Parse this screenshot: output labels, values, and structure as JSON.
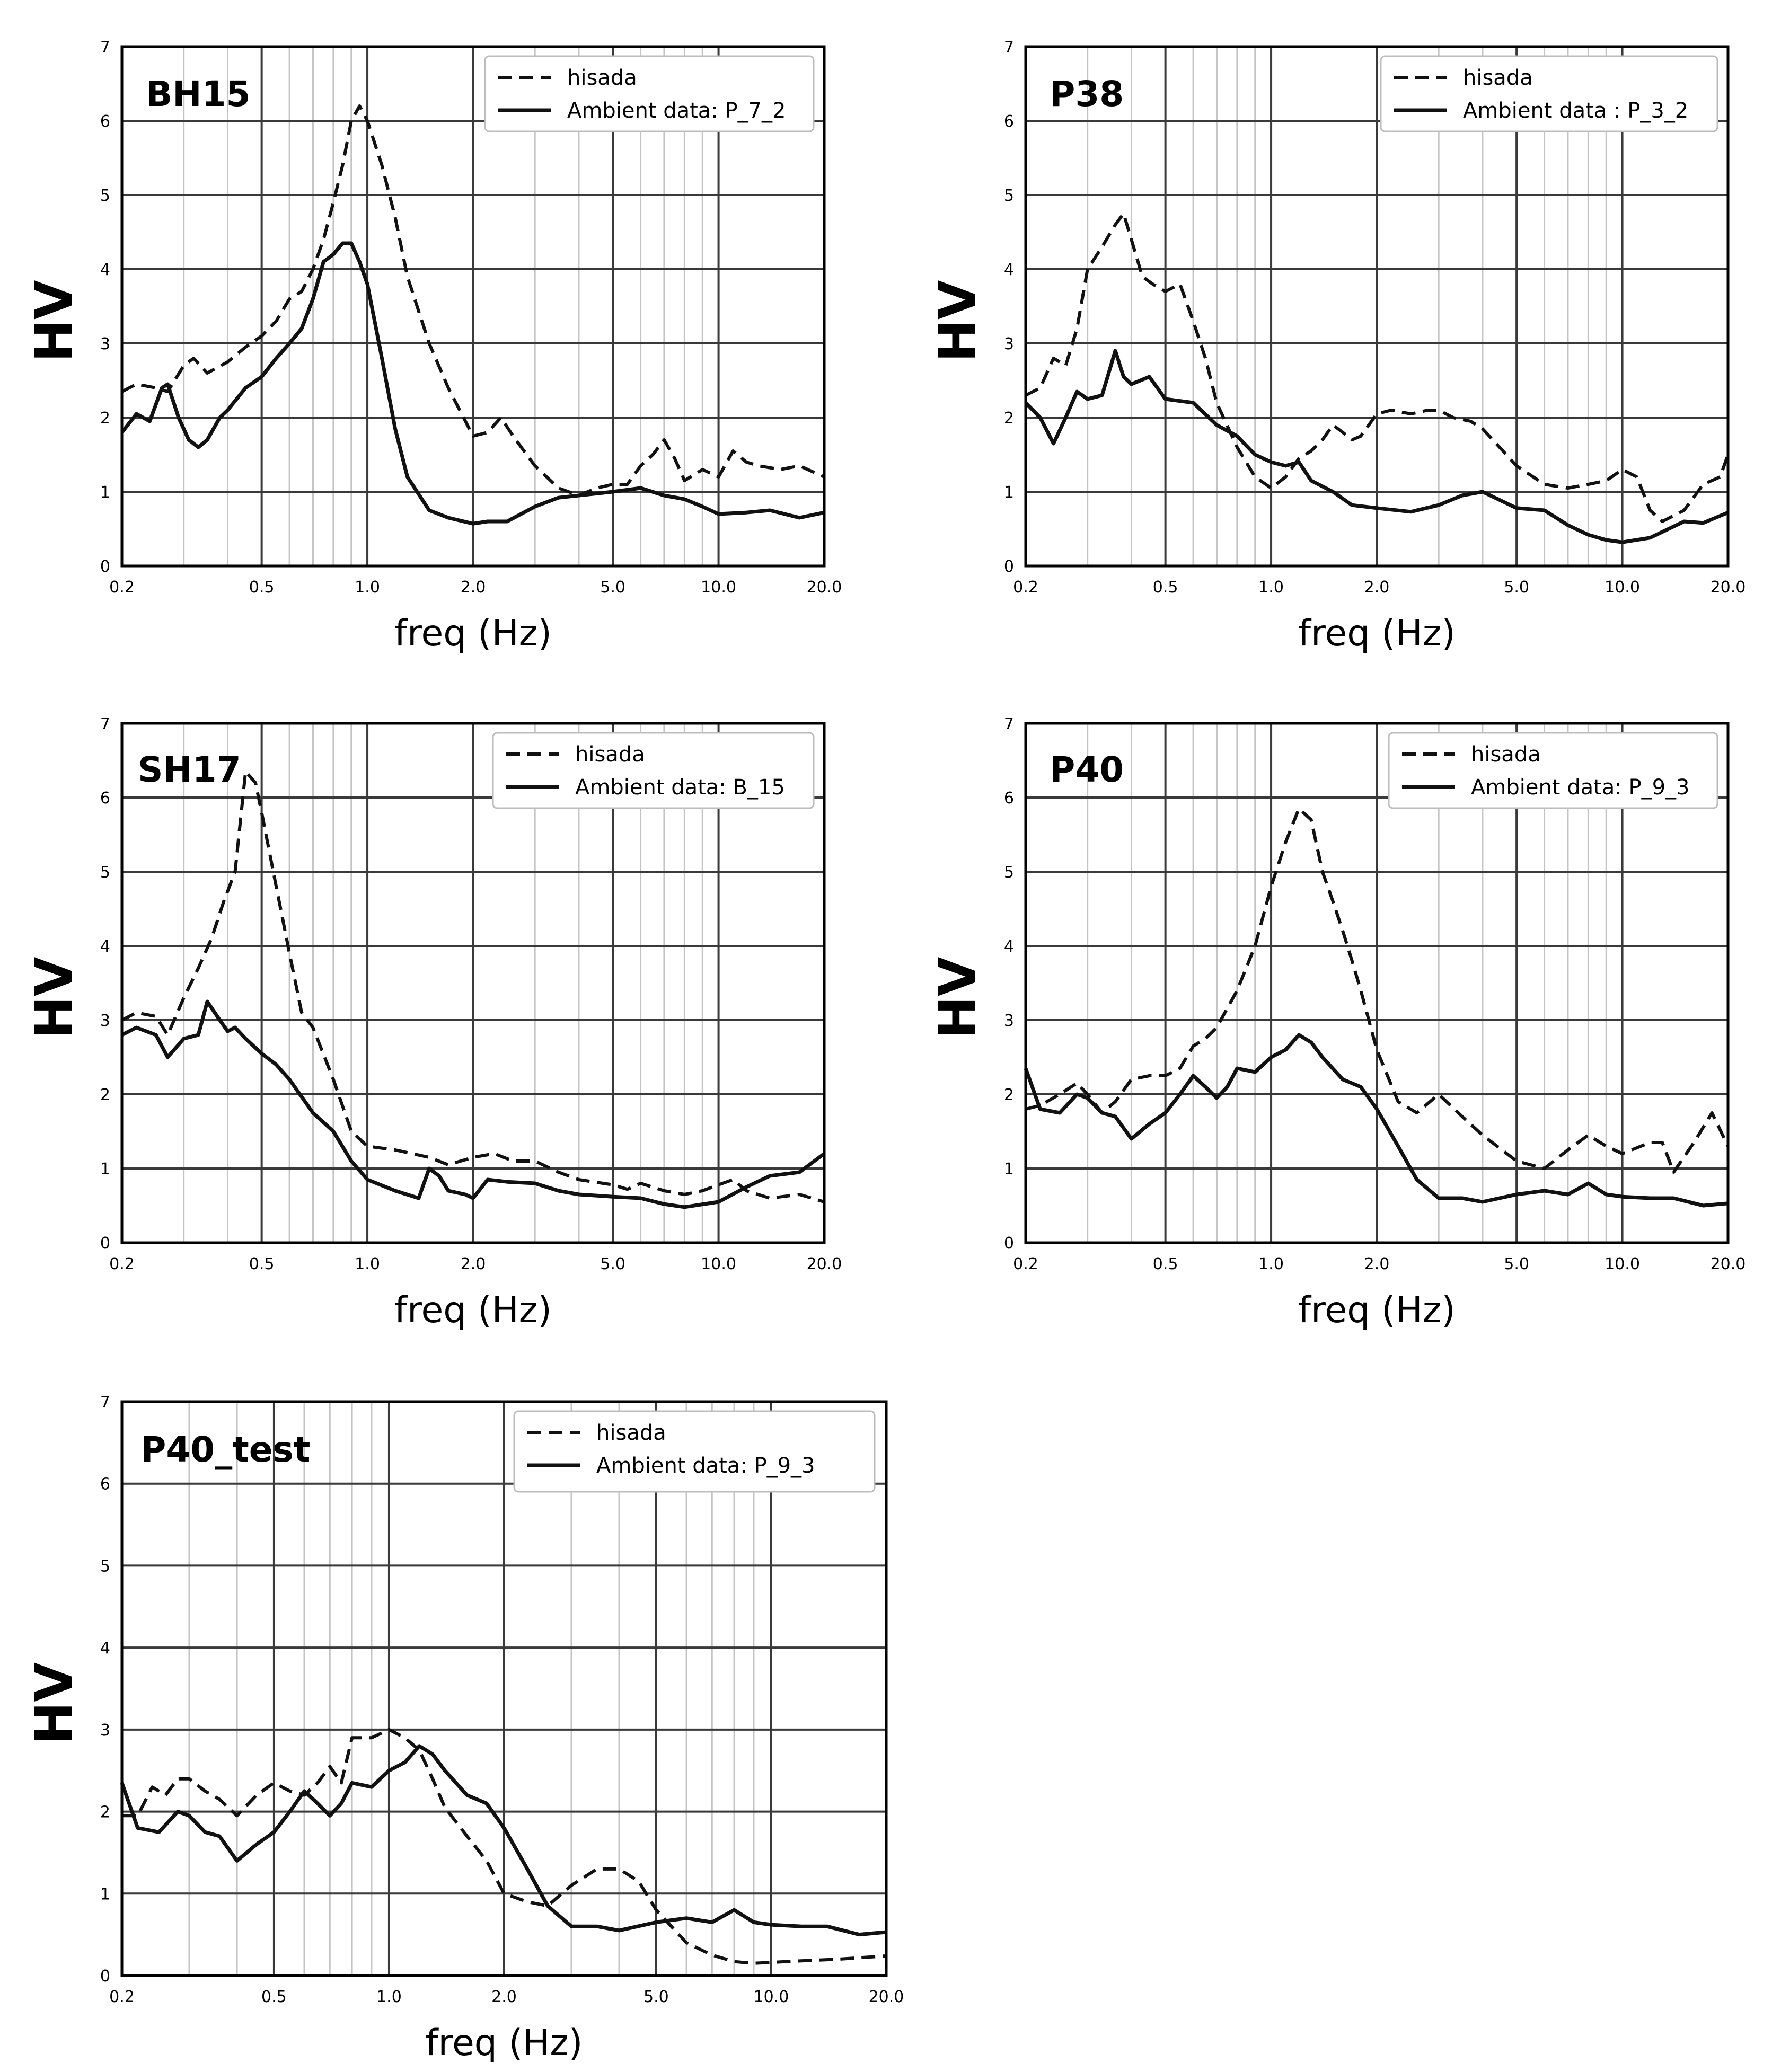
{
  "chart_data": [
    {
      "type": "line",
      "title": "BH15",
      "xlabel": "freq (Hz)",
      "ylabel": "HV",
      "xscale": "log",
      "xlim": [
        0.2,
        20.0
      ],
      "ylim": [
        0,
        7
      ],
      "xticks": [
        "0.2",
        "0.5",
        "1.0",
        "2.0",
        "5.0",
        "10.0",
        "20.0"
      ],
      "yticks": [
        "0",
        "1",
        "2",
        "3",
        "4",
        "5",
        "6",
        "7"
      ],
      "legend_position": "top-right",
      "series": [
        {
          "name": "hisada",
          "style": "dashed",
          "x": [
            0.2,
            0.22,
            0.25,
            0.27,
            0.3,
            0.32,
            0.35,
            0.4,
            0.45,
            0.5,
            0.55,
            0.6,
            0.65,
            0.7,
            0.75,
            0.8,
            0.85,
            0.9,
            0.95,
            1.0,
            1.1,
            1.2,
            1.3,
            1.5,
            1.7,
            2.0,
            2.2,
            2.4,
            2.6,
            3.0,
            3.5,
            4.0,
            4.5,
            5.0,
            5.5,
            6.0,
            6.5,
            7.0,
            7.5,
            8.0,
            9.0,
            10.0,
            11.0,
            12.0,
            13.0,
            15.0,
            17.0,
            20.0
          ],
          "y": [
            2.35,
            2.45,
            2.4,
            2.35,
            2.7,
            2.8,
            2.6,
            2.75,
            2.95,
            3.1,
            3.3,
            3.6,
            3.7,
            4.0,
            4.4,
            4.9,
            5.4,
            6.0,
            6.2,
            6.0,
            5.4,
            4.7,
            3.9,
            3.0,
            2.4,
            1.75,
            1.8,
            2.0,
            1.75,
            1.35,
            1.05,
            0.95,
            1.05,
            1.1,
            1.1,
            1.35,
            1.5,
            1.7,
            1.45,
            1.15,
            1.3,
            1.2,
            1.55,
            1.4,
            1.35,
            1.3,
            1.35,
            1.2
          ]
        },
        {
          "name": "Ambient data: P_7_2",
          "style": "solid",
          "x": [
            0.2,
            0.22,
            0.24,
            0.26,
            0.27,
            0.29,
            0.31,
            0.33,
            0.35,
            0.38,
            0.4,
            0.45,
            0.5,
            0.55,
            0.6,
            0.65,
            0.7,
            0.75,
            0.8,
            0.85,
            0.9,
            0.95,
            1.0,
            1.1,
            1.2,
            1.3,
            1.5,
            1.7,
            2.0,
            2.2,
            2.5,
            3.0,
            3.5,
            4.0,
            5.0,
            6.0,
            7.0,
            8.0,
            9.0,
            10.0,
            12.0,
            14.0,
            17.0,
            20.0
          ],
          "y": [
            1.8,
            2.05,
            1.95,
            2.4,
            2.45,
            2.0,
            1.7,
            1.6,
            1.7,
            2.0,
            2.1,
            2.4,
            2.55,
            2.8,
            3.0,
            3.2,
            3.6,
            4.1,
            4.2,
            4.35,
            4.35,
            4.1,
            3.8,
            2.8,
            1.85,
            1.2,
            0.75,
            0.65,
            0.57,
            0.6,
            0.6,
            0.8,
            0.92,
            0.95,
            1.0,
            1.05,
            0.95,
            0.9,
            0.8,
            0.7,
            0.72,
            0.75,
            0.65,
            0.72
          ]
        }
      ]
    },
    {
      "type": "line",
      "title": "P38",
      "xlabel": "freq (Hz)",
      "ylabel": "HV",
      "xscale": "log",
      "xlim": [
        0.2,
        20.0
      ],
      "ylim": [
        0,
        7
      ],
      "xticks": [
        "0.2",
        "0.5",
        "1.0",
        "2.0",
        "5.0",
        "10.0",
        "20.0"
      ],
      "yticks": [
        "0",
        "1",
        "2",
        "3",
        "4",
        "5",
        "6",
        "7"
      ],
      "legend_position": "top-right",
      "series": [
        {
          "name": "hisada",
          "style": "dashed",
          "x": [
            0.2,
            0.22,
            0.24,
            0.26,
            0.28,
            0.3,
            0.33,
            0.36,
            0.38,
            0.4,
            0.43,
            0.46,
            0.5,
            0.55,
            0.6,
            0.65,
            0.7,
            0.8,
            0.9,
            1.0,
            1.1,
            1.2,
            1.3,
            1.4,
            1.5,
            1.6,
            1.7,
            1.8,
            2.0,
            2.2,
            2.5,
            2.8,
            3.0,
            3.3,
            3.7,
            4.0,
            5.0,
            6.0,
            7.0,
            8.0,
            9.0,
            10.0,
            11.0,
            12.0,
            13.0,
            15.0,
            17.0,
            19.0,
            20.0
          ],
          "y": [
            2.3,
            2.4,
            2.8,
            2.7,
            3.2,
            4.0,
            4.3,
            4.6,
            4.75,
            4.4,
            3.9,
            3.8,
            3.7,
            3.8,
            3.3,
            2.8,
            2.2,
            1.6,
            1.2,
            1.05,
            1.2,
            1.45,
            1.55,
            1.7,
            1.9,
            1.8,
            1.7,
            1.75,
            2.05,
            2.1,
            2.05,
            2.1,
            2.1,
            2.0,
            1.95,
            1.85,
            1.35,
            1.1,
            1.05,
            1.1,
            1.15,
            1.3,
            1.2,
            0.75,
            0.6,
            0.75,
            1.1,
            1.2,
            1.5
          ]
        },
        {
          "name": "Ambient data : P_3_2",
          "style": "solid",
          "x": [
            0.2,
            0.22,
            0.24,
            0.26,
            0.28,
            0.3,
            0.33,
            0.36,
            0.38,
            0.4,
            0.45,
            0.5,
            0.6,
            0.7,
            0.8,
            0.9,
            1.0,
            1.1,
            1.2,
            1.3,
            1.5,
            1.7,
            2.0,
            2.5,
            3.0,
            3.5,
            4.0,
            5.0,
            6.0,
            7.0,
            8.0,
            9.0,
            10.0,
            12.0,
            15.0,
            17.0,
            20.0
          ],
          "y": [
            2.2,
            2.0,
            1.65,
            2.0,
            2.35,
            2.25,
            2.3,
            2.9,
            2.55,
            2.45,
            2.55,
            2.25,
            2.2,
            1.9,
            1.75,
            1.5,
            1.4,
            1.35,
            1.4,
            1.15,
            1.0,
            0.82,
            0.78,
            0.73,
            0.82,
            0.95,
            1.0,
            0.78,
            0.75,
            0.55,
            0.42,
            0.35,
            0.32,
            0.38,
            0.6,
            0.58,
            0.72
          ]
        }
      ]
    },
    {
      "type": "line",
      "title": "SH17",
      "xlabel": "freq (Hz)",
      "ylabel": "HV",
      "xscale": "log",
      "xlim": [
        0.2,
        20.0
      ],
      "ylim": [
        0,
        7
      ],
      "xticks": [
        "0.2",
        "0.5",
        "1.0",
        "2.0",
        "5.0",
        "10.0",
        "20.0"
      ],
      "yticks": [
        "0",
        "1",
        "2",
        "3",
        "4",
        "5",
        "6",
        "7"
      ],
      "legend_position": "top-right",
      "series": [
        {
          "name": "hisada",
          "style": "dashed",
          "x": [
            0.2,
            0.22,
            0.25,
            0.27,
            0.3,
            0.33,
            0.36,
            0.39,
            0.42,
            0.45,
            0.48,
            0.5,
            0.55,
            0.6,
            0.65,
            0.7,
            0.8,
            0.9,
            1.0,
            1.2,
            1.5,
            1.7,
            2.0,
            2.3,
            2.6,
            3.0,
            3.5,
            4.0,
            5.0,
            5.5,
            6.0,
            7.0,
            8.0,
            9.0,
            10.0,
            11.0,
            12.0,
            14.0,
            17.0,
            20.0
          ],
          "y": [
            3.0,
            3.1,
            3.05,
            2.8,
            3.3,
            3.7,
            4.1,
            4.6,
            5.0,
            6.35,
            6.2,
            5.8,
            4.8,
            3.9,
            3.1,
            2.9,
            2.2,
            1.5,
            1.3,
            1.25,
            1.15,
            1.05,
            1.15,
            1.2,
            1.1,
            1.1,
            0.95,
            0.85,
            0.78,
            0.72,
            0.8,
            0.7,
            0.65,
            0.7,
            0.78,
            0.85,
            0.7,
            0.6,
            0.65,
            0.55
          ]
        },
        {
          "name": "Ambient data: B_15",
          "style": "solid",
          "x": [
            0.2,
            0.22,
            0.25,
            0.27,
            0.3,
            0.33,
            0.35,
            0.38,
            0.4,
            0.42,
            0.45,
            0.5,
            0.55,
            0.6,
            0.7,
            0.8,
            0.9,
            1.0,
            1.2,
            1.4,
            1.5,
            1.6,
            1.7,
            1.9,
            2.0,
            2.2,
            2.5,
            3.0,
            3.5,
            4.0,
            5.0,
            6.0,
            7.0,
            8.0,
            10.0,
            12.0,
            14.0,
            17.0,
            20.0
          ],
          "y": [
            2.8,
            2.9,
            2.8,
            2.5,
            2.75,
            2.8,
            3.25,
            3.0,
            2.85,
            2.9,
            2.75,
            2.55,
            2.4,
            2.2,
            1.75,
            1.5,
            1.1,
            0.85,
            0.7,
            0.6,
            1.0,
            0.9,
            0.7,
            0.65,
            0.6,
            0.85,
            0.82,
            0.8,
            0.7,
            0.65,
            0.62,
            0.6,
            0.52,
            0.48,
            0.55,
            0.75,
            0.9,
            0.95,
            1.2
          ]
        }
      ]
    },
    {
      "type": "line",
      "title": "P40",
      "xlabel": "freq (Hz)",
      "ylabel": "HV",
      "xscale": "log",
      "xlim": [
        0.2,
        20.0
      ],
      "ylim": [
        0,
        7
      ],
      "xticks": [
        "0.2",
        "0.5",
        "1.0",
        "2.0",
        "5.0",
        "10.0",
        "20.0"
      ],
      "yticks": [
        "0",
        "1",
        "2",
        "3",
        "4",
        "5",
        "6",
        "7"
      ],
      "legend_position": "top-right",
      "series": [
        {
          "name": "hisada",
          "style": "dashed",
          "x": [
            0.2,
            0.22,
            0.25,
            0.28,
            0.3,
            0.33,
            0.36,
            0.4,
            0.45,
            0.5,
            0.55,
            0.6,
            0.65,
            0.7,
            0.8,
            0.9,
            1.0,
            1.1,
            1.2,
            1.3,
            1.4,
            1.5,
            1.6,
            1.7,
            1.8,
            2.0,
            2.3,
            2.6,
            3.0,
            3.5,
            4.0,
            5.0,
            6.0,
            7.0,
            8.0,
            9.0,
            10.0,
            12.0,
            13.0,
            14.0,
            16.0,
            18.0,
            20.0
          ],
          "y": [
            1.8,
            1.85,
            2.0,
            2.15,
            2.0,
            1.75,
            1.9,
            2.2,
            2.25,
            2.25,
            2.35,
            2.65,
            2.75,
            2.9,
            3.4,
            4.0,
            4.8,
            5.4,
            5.85,
            5.7,
            5.0,
            4.6,
            4.2,
            3.8,
            3.4,
            2.6,
            1.9,
            1.75,
            2.0,
            1.7,
            1.45,
            1.1,
            1.0,
            1.25,
            1.45,
            1.3,
            1.2,
            1.35,
            1.35,
            0.95,
            1.35,
            1.75,
            1.3
          ]
        },
        {
          "name": "Ambient data: P_9_3",
          "style": "solid",
          "x": [
            0.2,
            0.22,
            0.25,
            0.28,
            0.3,
            0.33,
            0.36,
            0.4,
            0.45,
            0.5,
            0.55,
            0.6,
            0.65,
            0.7,
            0.75,
            0.8,
            0.9,
            1.0,
            1.1,
            1.2,
            1.3,
            1.4,
            1.6,
            1.8,
            2.0,
            2.3,
            2.6,
            3.0,
            3.5,
            4.0,
            5.0,
            6.0,
            7.0,
            8.0,
            9.0,
            10.0,
            12.0,
            14.0,
            17.0,
            20.0
          ],
          "y": [
            2.35,
            1.8,
            1.75,
            2.0,
            1.95,
            1.75,
            1.7,
            1.4,
            1.6,
            1.75,
            2.0,
            2.25,
            2.1,
            1.95,
            2.1,
            2.35,
            2.3,
            2.5,
            2.6,
            2.8,
            2.7,
            2.5,
            2.2,
            2.1,
            1.8,
            1.3,
            0.85,
            0.6,
            0.6,
            0.55,
            0.65,
            0.7,
            0.65,
            0.8,
            0.65,
            0.62,
            0.6,
            0.6,
            0.5,
            0.53
          ]
        }
      ]
    },
    {
      "type": "line",
      "title": "P40_test",
      "xlabel": "freq (Hz)",
      "ylabel": "HV",
      "xscale": "log",
      "xlim": [
        0.2,
        20.0
      ],
      "ylim": [
        0,
        7
      ],
      "xticks": [
        "0.2",
        "0.5",
        "1.0",
        "2.0",
        "5.0",
        "10.0",
        "20.0"
      ],
      "yticks": [
        "0",
        "1",
        "2",
        "3",
        "4",
        "5",
        "6",
        "7"
      ],
      "legend_position": "top-right",
      "series": [
        {
          "name": "hisada",
          "style": "dashed",
          "x": [
            0.2,
            0.22,
            0.24,
            0.26,
            0.28,
            0.3,
            0.33,
            0.36,
            0.4,
            0.45,
            0.5,
            0.55,
            0.6,
            0.65,
            0.7,
            0.75,
            0.8,
            0.9,
            1.0,
            1.1,
            1.2,
            1.3,
            1.4,
            1.6,
            1.8,
            2.0,
            2.3,
            2.6,
            3.0,
            3.5,
            4.0,
            4.5,
            5.0,
            6.0,
            7.0,
            8.0,
            9.0,
            10.0,
            12.0,
            15.0,
            20.0
          ],
          "y": [
            1.95,
            1.95,
            2.3,
            2.2,
            2.4,
            2.4,
            2.25,
            2.15,
            1.95,
            2.2,
            2.35,
            2.25,
            2.2,
            2.35,
            2.55,
            2.35,
            2.9,
            2.9,
            3.0,
            2.9,
            2.75,
            2.4,
            2.05,
            1.7,
            1.4,
            1.0,
            0.9,
            0.85,
            1.1,
            1.3,
            1.3,
            1.15,
            0.8,
            0.4,
            0.25,
            0.17,
            0.15,
            0.16,
            0.18,
            0.2,
            0.24
          ]
        },
        {
          "name": "Ambient data: P_9_3",
          "style": "solid",
          "x": [
            0.2,
            0.22,
            0.25,
            0.28,
            0.3,
            0.33,
            0.36,
            0.4,
            0.45,
            0.5,
            0.55,
            0.6,
            0.65,
            0.7,
            0.75,
            0.8,
            0.9,
            1.0,
            1.1,
            1.2,
            1.3,
            1.4,
            1.6,
            1.8,
            2.0,
            2.3,
            2.6,
            3.0,
            3.5,
            4.0,
            5.0,
            6.0,
            7.0,
            8.0,
            9.0,
            10.0,
            12.0,
            14.0,
            17.0,
            20.0
          ],
          "y": [
            2.35,
            1.8,
            1.75,
            2.0,
            1.95,
            1.75,
            1.7,
            1.4,
            1.6,
            1.75,
            2.0,
            2.25,
            2.1,
            1.95,
            2.1,
            2.35,
            2.3,
            2.5,
            2.6,
            2.8,
            2.7,
            2.5,
            2.2,
            2.1,
            1.8,
            1.3,
            0.85,
            0.6,
            0.6,
            0.55,
            0.65,
            0.7,
            0.65,
            0.8,
            0.65,
            0.62,
            0.6,
            0.6,
            0.5,
            0.53
          ]
        }
      ]
    }
  ]
}
